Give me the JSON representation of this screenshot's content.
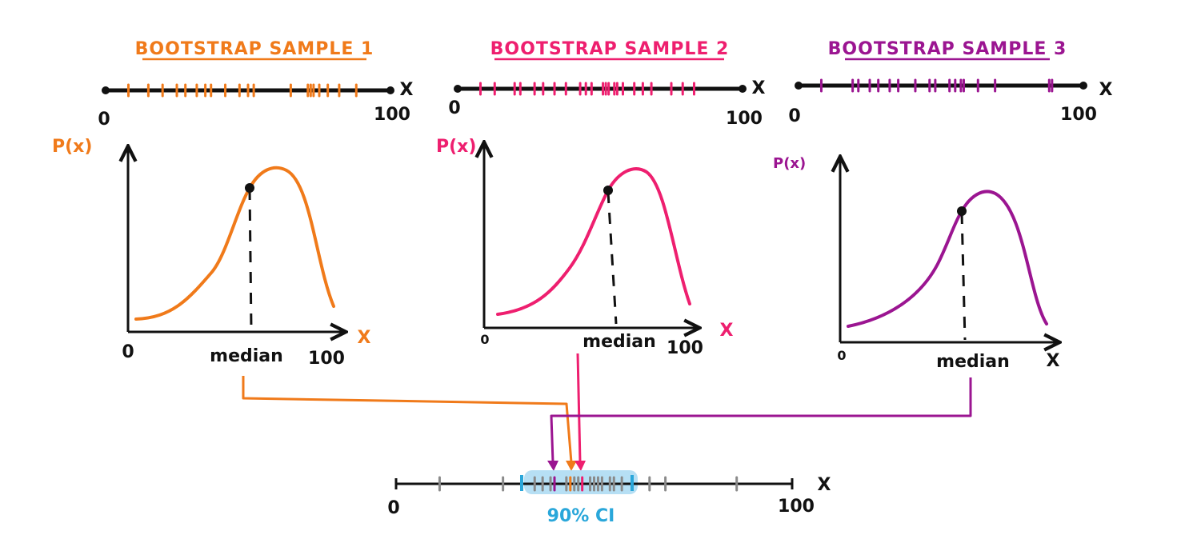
{
  "colors": {
    "sample1": "#f07a1a",
    "sample2": "#ee1f6f",
    "sample3": "#9b1591",
    "ci": "#2aa7da",
    "ci_fill": "#a9d9f2",
    "axis": "#111111",
    "other_median": "#8a8a8a"
  },
  "samples": [
    {
      "title": "BOOTSTRAP SAMPLE 1",
      "axis_min": "0",
      "axis_max": "100",
      "axis_var": "X",
      "ylabel": "P(x)",
      "density_min": "0",
      "density_max": "100",
      "density_var": "X",
      "median_label": "median",
      "median_value": 54,
      "mode_value": 65,
      "ticks": [
        8,
        15,
        20,
        25,
        28,
        32,
        35,
        37,
        42,
        47,
        50,
        52,
        65,
        71,
        72,
        73,
        75,
        78,
        82,
        88
      ]
    },
    {
      "title": "BOOTSTRAP SAMPLE 2",
      "axis_min": "0",
      "axis_max": "100",
      "axis_var": "X",
      "ylabel": "P(x)",
      "density_min": "0",
      "density_max": "100",
      "density_var": "X",
      "median_label": "median",
      "median_value": 56,
      "mode_value": 72,
      "ticks": [
        8,
        13,
        20,
        22,
        27,
        30,
        34,
        38,
        43,
        45,
        47,
        51,
        52,
        53,
        55,
        56,
        58,
        62,
        65,
        68,
        75,
        79,
        83
      ]
    },
    {
      "title": "BOOTSTRAP SAMPLE 3",
      "axis_min": "0",
      "axis_max": "100",
      "axis_var": "X",
      "ylabel": "P(x)",
      "density_min": "0",
      "density_max": "100",
      "density_var": "X",
      "median_label": "median",
      "median_value": 58,
      "mode_value": 68,
      "ticks": [
        8,
        19,
        21,
        25,
        28,
        32,
        35,
        41,
        46,
        48,
        53,
        55,
        57,
        58,
        63,
        69,
        88,
        89
      ]
    }
  ],
  "bottom": {
    "axis_min": "0",
    "axis_max": "100",
    "axis_var": "X",
    "ci_label": "90% CI",
    "ci_low": 32,
    "ci_high": 60,
    "median_ticks": [
      11,
      27,
      35,
      37,
      39,
      40,
      43,
      44,
      45,
      46,
      47,
      49,
      50,
      51,
      52,
      54,
      55,
      57,
      64,
      68,
      86
    ],
    "arrow_targets": [
      40,
      44,
      47
    ]
  }
}
